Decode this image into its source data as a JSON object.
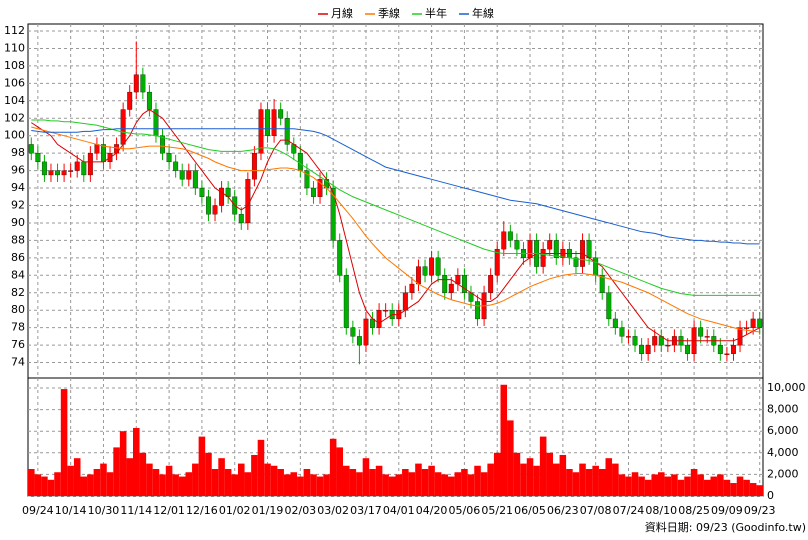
{
  "chart_data": [
    {
      "type": "candlestick",
      "up_color": "#ff0000",
      "down_color": "#00b000",
      "grid": true,
      "categories": [
        null,
        "09/24",
        null,
        null,
        null,
        null,
        "10/14",
        null,
        null,
        null,
        null,
        "10/30",
        null,
        null,
        null,
        null,
        "11/14",
        null,
        null,
        null,
        null,
        "12/01",
        null,
        null,
        null,
        null,
        "12/16",
        null,
        null,
        null,
        null,
        "01/02",
        null,
        null,
        null,
        null,
        "01/19",
        null,
        null,
        null,
        null,
        "02/03",
        null,
        null,
        null,
        null,
        "03/02",
        null,
        null,
        null,
        null,
        "03/17",
        null,
        null,
        null,
        null,
        "04/01",
        null,
        null,
        null,
        null,
        "04/20",
        null,
        null,
        null,
        null,
        "05/06",
        null,
        null,
        null,
        null,
        "05/21",
        null,
        null,
        null,
        null,
        "06/05",
        null,
        null,
        null,
        null,
        "06/23",
        null,
        null,
        null,
        null,
        "07/08",
        null,
        null,
        null,
        null,
        "07/24",
        null,
        null,
        null,
        null,
        "08/10",
        null,
        null,
        null,
        null,
        "08/25",
        null,
        null,
        null,
        null,
        "09/09",
        null,
        null,
        null,
        null,
        "09/23"
      ],
      "open": [
        99,
        98,
        97,
        95.5,
        96,
        95.5,
        96,
        96,
        97,
        95.5,
        98,
        99,
        97,
        98,
        99,
        103,
        105,
        107,
        105,
        103,
        100,
        98,
        97,
        96,
        95,
        96,
        94,
        93,
        91,
        92,
        94,
        93,
        91,
        90,
        95,
        98,
        103,
        100,
        103,
        102,
        99,
        98,
        96,
        94,
        93,
        95,
        94,
        88,
        84,
        78,
        77,
        76,
        79,
        78,
        80,
        80,
        79,
        80,
        82,
        83,
        85,
        84,
        86,
        84,
        82,
        83,
        84,
        82,
        81,
        79,
        82,
        84,
        87,
        89,
        88,
        87,
        86,
        88,
        85,
        87,
        88,
        86,
        87,
        86,
        85,
        88,
        86,
        84,
        82,
        79,
        78,
        77,
        77,
        76,
        75,
        76,
        77,
        76,
        76,
        77,
        76,
        75,
        78,
        77,
        77,
        76,
        75,
        75,
        76,
        78,
        78,
        79
      ],
      "high": [
        99.8,
        98.8,
        97.8,
        96.8,
        96.8,
        96.8,
        96.8,
        97.8,
        97.8,
        98.8,
        99.8,
        99.8,
        98.8,
        99.8,
        103.8,
        105.8,
        110.8,
        107.8,
        105.8,
        103.8,
        100.8,
        98.8,
        97.8,
        96.8,
        96.8,
        96.8,
        94.8,
        93.8,
        92.8,
        94.8,
        94.8,
        93.8,
        91.8,
        95.8,
        98.8,
        103.8,
        103.8,
        104.2,
        103.8,
        102.8,
        99.8,
        98.8,
        96.8,
        94.8,
        95.8,
        95.8,
        94.8,
        88.8,
        84.8,
        78.8,
        77.8,
        79.8,
        79.8,
        80.8,
        80.8,
        80.8,
        80.8,
        82.8,
        83.8,
        85.8,
        85.8,
        86.8,
        86.8,
        84.8,
        83.8,
        84.8,
        84.8,
        82.8,
        81.8,
        82.8,
        84.8,
        87.8,
        90.2,
        89.8,
        88.8,
        87.8,
        88.8,
        88.8,
        87.8,
        88.8,
        88.8,
        87.8,
        87.8,
        86.8,
        88.8,
        88.8,
        86.8,
        84.8,
        82.8,
        79.8,
        78.8,
        77.8,
        77.8,
        76.8,
        76.8,
        77.8,
        77.8,
        76.8,
        77.8,
        77.8,
        76.8,
        78.8,
        78.8,
        77.8,
        77.8,
        76.8,
        75.8,
        76.8,
        78.8,
        78.8,
        79.8,
        79.8
      ],
      "low": [
        97.2,
        96.2,
        94.7,
        94.7,
        94.7,
        94.7,
        95.2,
        95.2,
        94.7,
        94.7,
        97.2,
        96.2,
        96.2,
        97.2,
        98.2,
        102.2,
        104.2,
        104.2,
        102.2,
        99.2,
        97.2,
        96.2,
        95.2,
        94.2,
        94.2,
        93.2,
        92.2,
        90.2,
        90.2,
        91.2,
        92.2,
        90.2,
        89.2,
        89.2,
        94.2,
        97.2,
        99.2,
        99.2,
        101.2,
        98.2,
        97.2,
        95.2,
        93.2,
        92.2,
        92.2,
        93.2,
        87.2,
        83.2,
        77.2,
        76.2,
        73.8,
        75.2,
        77.2,
        77.2,
        79.2,
        78.2,
        78.2,
        79.2,
        81.2,
        82.2,
        83.2,
        83.2,
        83.2,
        81.2,
        81.2,
        82.2,
        81.2,
        80.2,
        78.2,
        78.2,
        81.2,
        83.2,
        86.2,
        87.2,
        86.2,
        85.2,
        85.2,
        84.2,
        84.2,
        86.2,
        85.2,
        85.2,
        85.2,
        84.2,
        84.2,
        85.2,
        83.2,
        81.2,
        78.2,
        77.2,
        76.2,
        76.2,
        75.2,
        74.2,
        74.2,
        75.2,
        75.2,
        75.2,
        75.2,
        75.2,
        74.2,
        74.2,
        76.2,
        76.2,
        75.2,
        74.2,
        74.2,
        74.2,
        75.2,
        77.2,
        77.2,
        77.2
      ],
      "close": [
        98,
        97,
        95.5,
        96,
        95.5,
        96,
        96,
        97,
        95.5,
        98,
        99,
        97,
        98,
        99,
        103,
        105,
        107,
        105,
        103,
        100,
        98,
        97,
        96,
        95,
        96,
        94,
        93,
        91,
        92,
        94,
        93,
        91,
        90,
        95,
        98,
        103,
        100,
        103,
        102,
        99,
        98,
        96,
        94,
        93,
        95,
        94,
        88,
        84,
        78,
        77,
        76,
        79,
        78,
        80,
        80,
        79,
        80,
        82,
        83,
        85,
        84,
        86,
        84,
        82,
        83,
        84,
        82,
        81,
        79,
        82,
        84,
        87,
        89,
        88,
        87,
        86,
        88,
        85,
        87,
        88,
        86,
        87,
        86,
        85,
        88,
        86,
        84,
        82,
        79,
        78,
        77,
        77,
        76,
        75,
        76,
        77,
        76,
        76,
        77,
        76,
        75,
        78,
        77,
        77,
        76,
        75,
        75,
        76,
        78,
        78,
        79,
        78
      ],
      "series": [
        {
          "name": "月線",
          "color": "#dd0000",
          "values": [
            101.5,
            101,
            100.5,
            100,
            99,
            98.5,
            98,
            97.5,
            97,
            97,
            97,
            97,
            97.5,
            98,
            99,
            100,
            101.5,
            102.5,
            103,
            102.5,
            102,
            101,
            100,
            99,
            98,
            97,
            96,
            95,
            94,
            93.5,
            93,
            92,
            91.5,
            92,
            93.5,
            95,
            97,
            98.5,
            99.5,
            99.5,
            99,
            98.5,
            98,
            97,
            96,
            95,
            93.5,
            91,
            88,
            85,
            82,
            80,
            79,
            78.5,
            79,
            79.5,
            79.5,
            80,
            80.5,
            81,
            82,
            83,
            83.5,
            83.5,
            83.5,
            83,
            82.5,
            82,
            81.5,
            81,
            81,
            81.5,
            82.5,
            83.5,
            84.5,
            85.5,
            86,
            86.5,
            86.5,
            86.5,
            86.5,
            86.5,
            86.5,
            86.5,
            86.5,
            86,
            85.5,
            85,
            84,
            83,
            82,
            81,
            80,
            79,
            78,
            77.5,
            77,
            76.5,
            76.5,
            76.5,
            76.5,
            76.5,
            76.5,
            76.5,
            76.5,
            76.5,
            76.5,
            76.5,
            76.8,
            77.2,
            77.6,
            78
          ]
        },
        {
          "name": "季線",
          "color": "#ff7700",
          "values": [
            101,
            100.8,
            100.6,
            100.4,
            100.2,
            100,
            99.8,
            99.6,
            99.4,
            99.2,
            99,
            98.8,
            98.7,
            98.6,
            98.5,
            98.5,
            98.6,
            98.7,
            98.8,
            98.8,
            98.8,
            98.7,
            98.6,
            98.5,
            98.3,
            98,
            97.7,
            97.4,
            97,
            96.7,
            96.4,
            96.2,
            96,
            96,
            96,
            96,
            96.1,
            96.2,
            96.3,
            96.3,
            96.2,
            96,
            95.6,
            95.2,
            94.6,
            94,
            93.2,
            92.3,
            91.4,
            90.5,
            89.5,
            88.5,
            87.6,
            86.8,
            86,
            85.4,
            84.8,
            84.2,
            83.6,
            83,
            82.6,
            82.2,
            81.8,
            81.5,
            81.2,
            81,
            80.8,
            80.6,
            80.5,
            80.5,
            80.6,
            80.8,
            81.1,
            81.5,
            81.9,
            82.3,
            82.7,
            83,
            83.3,
            83.6,
            83.8,
            84,
            84.1,
            84.2,
            84.2,
            84.1,
            84,
            83.8,
            83.6,
            83.4,
            83.2,
            82.9,
            82.6,
            82.3,
            82,
            81.6,
            81.2,
            80.8,
            80.4,
            80,
            79.6,
            79.3,
            79,
            78.8,
            78.6,
            78.4,
            78.2,
            78,
            77.8,
            77.7,
            77.6,
            77.5
          ]
        },
        {
          "name": "半年",
          "color": "#22cc22",
          "values": [
            101.8,
            101.8,
            101.8,
            101.7,
            101.7,
            101.6,
            101.6,
            101.5,
            101.4,
            101.3,
            101.2,
            101,
            100.8,
            100.6,
            100.4,
            100.3,
            100.2,
            100.2,
            100.1,
            100,
            99.8,
            99.6,
            99.4,
            99.2,
            99,
            98.8,
            98.6,
            98.4,
            98.3,
            98.2,
            98.2,
            98.2,
            98.2,
            98.3,
            98.4,
            98.6,
            98.6,
            98.5,
            98.2,
            97.8,
            97.3,
            96.8,
            96.3,
            95.8,
            95.3,
            94.8,
            94.3,
            93.8,
            93.4,
            93,
            92.7,
            92.4,
            92.1,
            91.8,
            91.5,
            91.2,
            90.9,
            90.6,
            90.3,
            90,
            89.7,
            89.4,
            89.1,
            88.8,
            88.5,
            88.2,
            87.9,
            87.6,
            87.3,
            87,
            86.8,
            86.6,
            86.5,
            86.5,
            86.5,
            86.5,
            86.5,
            86.5,
            86.4,
            86.3,
            86.2,
            86.1,
            86,
            85.9,
            85.8,
            85.7,
            85.5,
            85.2,
            84.9,
            84.6,
            84.3,
            84,
            83.7,
            83.4,
            83.1,
            82.8,
            82.5,
            82.3,
            82.1,
            81.9,
            81.8,
            81.7,
            81.7,
            81.7,
            81.7,
            81.7,
            81.7,
            81.7,
            81.7,
            81.7,
            81.7,
            81.7
          ]
        },
        {
          "name": "年線",
          "color": "#1a5fd0",
          "values": [
            100.6,
            100.5,
            100.4,
            100.4,
            100.4,
            100.4,
            100.4,
            100.4,
            100.5,
            100.5,
            100.6,
            100.7,
            100.7,
            100.8,
            100.8,
            100.8,
            100.8,
            100.8,
            100.8,
            100.8,
            100.8,
            100.8,
            100.8,
            100.8,
            100.8,
            100.8,
            100.8,
            100.8,
            100.8,
            100.8,
            100.8,
            100.8,
            100.8,
            100.8,
            100.8,
            100.8,
            100.8,
            100.8,
            100.8,
            100.8,
            100.8,
            100.7,
            100.6,
            100.5,
            100.3,
            100,
            99.6,
            99.2,
            98.8,
            98.4,
            98,
            97.6,
            97.2,
            96.8,
            96.4,
            96.2,
            96,
            95.8,
            95.6,
            95.4,
            95.2,
            95,
            94.8,
            94.6,
            94.4,
            94.2,
            94,
            93.8,
            93.6,
            93.4,
            93.2,
            93,
            92.8,
            92.6,
            92.5,
            92.4,
            92.3,
            92.2,
            92,
            91.8,
            91.6,
            91.4,
            91.2,
            91,
            90.8,
            90.6,
            90.4,
            90.2,
            90,
            89.8,
            89.6,
            89.4,
            89.2,
            89,
            88.9,
            88.8,
            88.6,
            88.4,
            88.3,
            88.2,
            88.1,
            88,
            88,
            87.9,
            87.9,
            87.8,
            87.8,
            87.7,
            87.7,
            87.6,
            87.6,
            87.6
          ]
        }
      ],
      "ylim": [
        72,
        112
      ],
      "yticks": [
        74,
        76,
        78,
        80,
        82,
        84,
        86,
        88,
        90,
        92,
        94,
        96,
        98,
        100,
        102,
        104,
        106,
        108,
        110,
        112
      ]
    },
    {
      "type": "bar",
      "color": "#ff0000",
      "grid": true,
      "values": [
        2500,
        2000,
        1800,
        1500,
        2200,
        9900,
        2800,
        3500,
        1800,
        2000,
        2500,
        3000,
        2200,
        4500,
        6000,
        3500,
        6300,
        4000,
        3000,
        2500,
        2000,
        2800,
        2000,
        1800,
        2200,
        3000,
        5500,
        4000,
        2500,
        3500,
        2500,
        2000,
        3000,
        2200,
        3800,
        5200,
        3000,
        2800,
        2500,
        2000,
        2200,
        1800,
        2500,
        2000,
        1800,
        2000,
        5300,
        4500,
        2800,
        2500,
        2200,
        3500,
        2500,
        2800,
        2000,
        1800,
        2000,
        2500,
        2200,
        3000,
        2500,
        2800,
        2200,
        2000,
        1800,
        2200,
        2500,
        2000,
        2800,
        2200,
        3000,
        4000,
        10300,
        7000,
        4000,
        3000,
        3500,
        2800,
        5500,
        4000,
        3000,
        3800,
        2500,
        2200,
        3000,
        2500,
        2800,
        2500,
        3500,
        3000,
        2000,
        1800,
        2200,
        1800,
        1500,
        2000,
        2200,
        1800,
        2000,
        1500,
        1800,
        2500,
        2000,
        1500,
        1800,
        2000,
        1500,
        1200,
        1800,
        1500,
        1200,
        1000
      ],
      "ylim": [
        0,
        11000
      ],
      "yticks": [
        0,
        {
          "value": 2000,
          "label": "2,000"
        },
        {
          "value": 4000,
          "label": "4,000"
        },
        {
          "value": 6000,
          "label": "6,000"
        },
        {
          "value": 8000,
          "label": "8,000"
        },
        {
          "value": 10000,
          "label": "10,000"
        }
      ],
      "footnote": "資料日期: 09/23 (Goodinfo.tw)"
    }
  ]
}
